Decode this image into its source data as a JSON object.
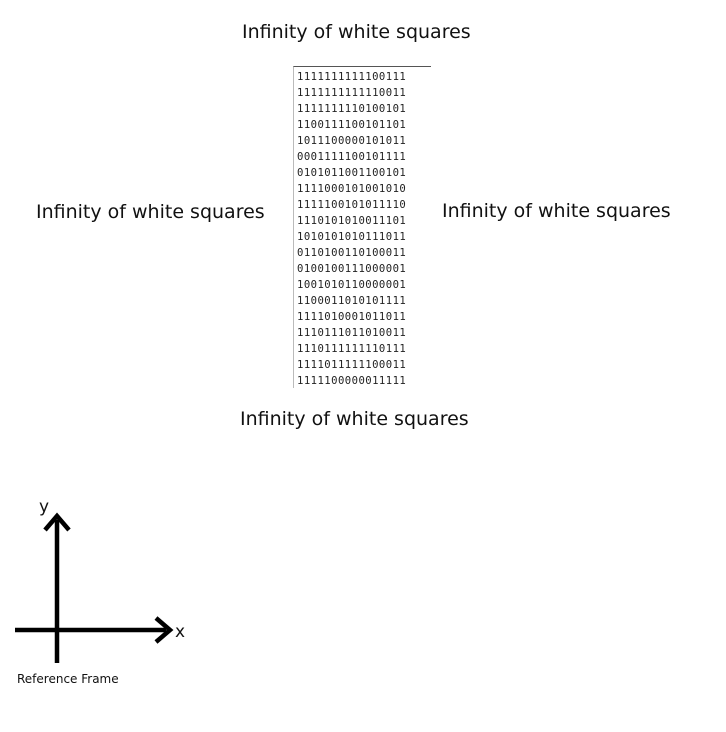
{
  "labels": {
    "top": "Infinity of white squares",
    "left": "Infinity of white squares",
    "right": "Infinity of white squares",
    "bottom": "Infinity of white squares"
  },
  "grid_rows": [
    "1111111111100111",
    "1111111111110011",
    "1111111110100101",
    "1100111100101101",
    "1011100000101011",
    "0001111100101111",
    "0101011001100101",
    "1111000101001010",
    "1111100101011110",
    "1110101010011101",
    "1010101010111011",
    "0110100110100011",
    "0100100111000001",
    "1001010110000001",
    "1100011010101111",
    "1111010001011011",
    "1110111011010011",
    "1110111111110111",
    "1111011111100011",
    "1111100000011111"
  ],
  "reference_frame": {
    "y_label": "y",
    "x_label": "x",
    "caption": "Reference Frame"
  }
}
